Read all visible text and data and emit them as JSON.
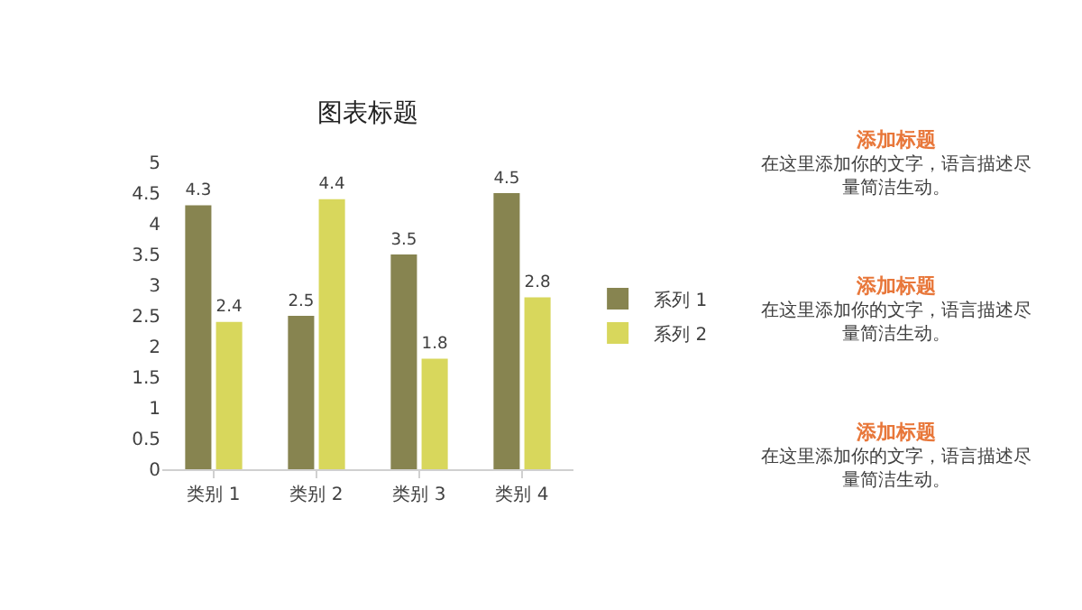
{
  "chart_data": {
    "type": "bar",
    "title": "图表标题",
    "categories": [
      "类别 1",
      "类别 2",
      "类别 3",
      "类别 4"
    ],
    "series": [
      {
        "name": "系列 1",
        "color": "#878450",
        "values": [
          4.3,
          2.5,
          3.5,
          4.5
        ]
      },
      {
        "name": "系列 2",
        "color": "#d8d75c",
        "values": [
          2.4,
          4.4,
          1.8,
          2.8
        ]
      }
    ],
    "ylim": [
      0,
      5
    ],
    "yticks": [
      0,
      0.5,
      1,
      1.5,
      2,
      2.5,
      3,
      3.5,
      4,
      4.5,
      5
    ],
    "grid": false,
    "legend": "right",
    "data_labels": true,
    "annotations": [
      "添加标题",
      "在这里添加你的文字，语言描述尽量简洁生动。",
      "添加标题",
      "在这里添加你的文字，语言描述尽量简洁生动。",
      "添加标题",
      "在这里添加你的文字，语言描述尽量简洁生动。"
    ]
  }
}
